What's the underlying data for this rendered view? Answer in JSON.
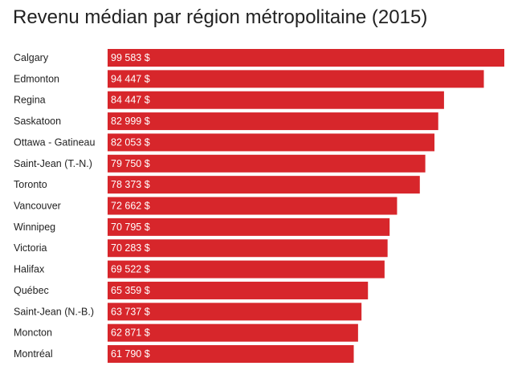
{
  "chart_data": {
    "type": "bar",
    "orientation": "horizontal",
    "title": "Revenu médian par région métropolitaine (2015)",
    "categories": [
      "Calgary",
      "Edmonton",
      "Regina",
      "Saskatoon",
      "Ottawa - Gatineau",
      "Saint-Jean (T.-N.)",
      "Toronto",
      "Vancouver",
      "Winnipeg",
      "Victoria",
      "Halifax",
      "Québec",
      "Saint-Jean (N.-B.)",
      "Moncton",
      "Montréal"
    ],
    "values": [
      99583,
      94447,
      84447,
      82999,
      82053,
      79750,
      78373,
      72662,
      70795,
      70283,
      69522,
      65359,
      63737,
      62871,
      61790
    ],
    "value_labels": [
      "99 583 $",
      "94 447 $",
      "84 447 $",
      "82 999 $",
      "82 053 $",
      "79 750 $",
      "78 373 $",
      "72 662 $",
      "70 795 $",
      "70 283 $",
      "69 522 $",
      "65 359 $",
      "63 737 $",
      "62 871 $",
      "61 790 $"
    ],
    "xlim": [
      0,
      99583
    ],
    "grid": false,
    "legend": "none",
    "bar_color": "#d7262b"
  }
}
